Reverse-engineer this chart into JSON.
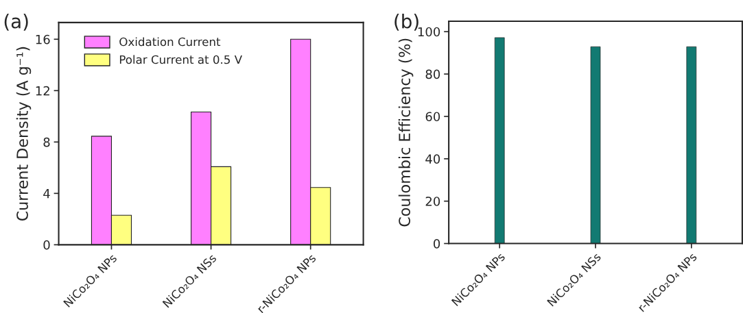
{
  "chart_data": [
    {
      "type": "bar",
      "annotations": [
        "(a)"
      ],
      "ylabel": "Current Density (A g⁻¹)",
      "categories": [
        "NiCo₂O₄ NPs",
        "NiCo₂O₄ NSs",
        "r-NiCo₂O₄ NPs"
      ],
      "series": [
        {
          "name": "Oxidation Current",
          "color": "#ff80ff",
          "values": [
            8.45,
            10.34,
            16.0
          ]
        },
        {
          "name": "Polar Current at 0.5 V",
          "color": "#ffff80",
          "values": [
            2.3,
            6.08,
            4.46
          ]
        }
      ],
      "ylim": [
        0,
        17.3
      ],
      "yticks": [
        0,
        4,
        8,
        12,
        16
      ],
      "grid": false,
      "legend": "top left"
    },
    {
      "type": "bar",
      "annotations": [
        "(b)"
      ],
      "ylabel": "Coulombic Efficiency (%)",
      "categories": [
        "NiCo₂O₄ NPs",
        "NiCo₂O₄ NSs",
        "r-NiCo₂O₄ NPs"
      ],
      "series": [
        {
          "color": "#127a72",
          "values": [
            97.2,
            92.9,
            92.9
          ]
        }
      ],
      "ylim": [
        0,
        104.9
      ],
      "yticks": [
        0,
        20,
        40,
        60,
        80,
        100
      ],
      "grid": false,
      "legend": false
    }
  ]
}
